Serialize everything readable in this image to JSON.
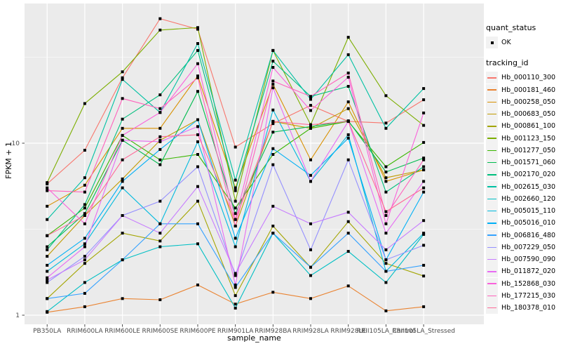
{
  "figure": {
    "background": "#FFFFFF",
    "panel_background": "#EBEBEB",
    "grid_color": "#FFFFFF",
    "tick_color": "#333333",
    "axis_text_color": "#4D4D4D"
  },
  "chart_data": {
    "type": "line",
    "x_axis": {
      "label": "sample_name",
      "categories": [
        "PB350LA",
        "RRIM600LA",
        "RRIM600LE",
        "RRIM600SE",
        "RRIM600PE",
        "RRIM901LA",
        "RRIM928BA",
        "RRIM928LA",
        "RRIM928LE",
        "RRII105LA_Control",
        "RRII105LA_Stressed"
      ]
    },
    "y_axis": {
      "label": "FPKM + 1",
      "scale": "log10",
      "ticks": [
        {
          "label": "1",
          "value": 1
        },
        {
          "label": "10",
          "value": 10
        }
      ],
      "minor_ticks": [
        3.162,
        31.62
      ],
      "range": [
        0.95,
        65
      ]
    },
    "point": {
      "shape": "square",
      "color": "#000000",
      "size": 4
    },
    "series": [
      {
        "name": "Hb_000110_300",
        "color": "#F8766D",
        "values": [
          5.8,
          9.1,
          24,
          53,
          46,
          9.5,
          13.0,
          16.6,
          13.4,
          13.1,
          17.9
        ]
      },
      {
        "name": "Hb_000181_460",
        "color": "#EA8331",
        "values": [
          1.04,
          1.12,
          1.25,
          1.23,
          1.5,
          1.16,
          1.36,
          1.25,
          1.48,
          1.06,
          1.12
        ]
      },
      {
        "name": "Hb_000258_050",
        "color": "#D89000",
        "values": [
          4.3,
          5.7,
          12.2,
          12.2,
          24.6,
          5.5,
          22,
          8.0,
          17.4,
          6.0,
          7.0
        ]
      },
      {
        "name": "Hb_000683_050",
        "color": "#C09B00",
        "values": [
          2.2,
          3.8,
          6.2,
          10.4,
          13.7,
          3.3,
          13.4,
          12.2,
          15.9,
          6.3,
          7.0
        ]
      },
      {
        "name": "Hb_000861_100",
        "color": "#A3A500",
        "values": [
          1.25,
          2.0,
          3.0,
          2.7,
          4.6,
          1.3,
          3.3,
          1.9,
          3.5,
          2.0,
          1.69
        ]
      },
      {
        "name": "Hb_001123_150",
        "color": "#7CAE00",
        "values": [
          5.9,
          17.0,
          26,
          45.5,
          47,
          4.6,
          34.6,
          12.8,
          41.3,
          18.9,
          12.7
        ]
      },
      {
        "name": "Hb_001277_050",
        "color": "#39B600",
        "values": [
          2.9,
          4.2,
          11.1,
          8.0,
          8.6,
          4.2,
          8.6,
          12.2,
          13.4,
          7.3,
          10.1
        ]
      },
      {
        "name": "Hb_001571_060",
        "color": "#00BB4E",
        "values": [
          2.5,
          3.9,
          10.4,
          7.5,
          20,
          3.9,
          11.6,
          12.5,
          13.5,
          6.8,
          8.2
        ]
      },
      {
        "name": "Hb_002170_020",
        "color": "#00BF7D",
        "values": [
          2.4,
          4.4,
          13.8,
          19.1,
          34.6,
          5.3,
          30,
          18.7,
          21.4,
          5.2,
          7.3
        ]
      },
      {
        "name": "Hb_002615_030",
        "color": "#00C1A3",
        "values": [
          3.6,
          6.3,
          23.5,
          15.1,
          38,
          6.1,
          34.6,
          18.0,
          32.7,
          12.2,
          20.8
        ]
      },
      {
        "name": "Hb_002660_120",
        "color": "#00BFC4",
        "values": [
          1.05,
          1.55,
          2.1,
          2.5,
          2.6,
          1.1,
          3.0,
          1.7,
          2.35,
          1.55,
          2.95
        ]
      },
      {
        "name": "Hb_005015_110",
        "color": "#00BADE",
        "values": [
          1.8,
          2.6,
          5.5,
          3.4,
          10.2,
          2.5,
          15.6,
          6.0,
          11.2,
          1.8,
          3.0
        ]
      },
      {
        "name": "Hb_005016_010",
        "color": "#00B0F6",
        "values": [
          1.95,
          2.8,
          6.0,
          9.2,
          13.7,
          2.8,
          9.3,
          6.5,
          10.7,
          2.1,
          5.2
        ]
      },
      {
        "name": "Hb_006816_480",
        "color": "#35A2FF",
        "values": [
          1.25,
          1.34,
          2.1,
          3.4,
          3.4,
          1.45,
          3.0,
          1.9,
          3.0,
          1.8,
          1.95
        ]
      },
      {
        "name": "Hb_007229_050",
        "color": "#9590FF",
        "values": [
          1.55,
          2.2,
          3.8,
          4.6,
          7.3,
          1.7,
          7.5,
          2.4,
          8.0,
          2.1,
          2.55
        ]
      },
      {
        "name": "Hb_007590_090",
        "color": "#C77CFF",
        "values": [
          1.6,
          2.1,
          3.8,
          3.0,
          5.6,
          1.75,
          4.3,
          3.4,
          3.97,
          2.4,
          3.55
        ]
      },
      {
        "name": "Hb_011872_020",
        "color": "#E76BF3",
        "values": [
          1.65,
          2.5,
          10.4,
          10.2,
          12.5,
          1.5,
          21,
          6.0,
          13.4,
          3.0,
          6.0
        ]
      },
      {
        "name": "Hb_152868_030",
        "color": "#FA62DB",
        "values": [
          5.5,
          3.4,
          11.1,
          15.1,
          29,
          3.6,
          27.6,
          15.5,
          24.2,
          3.4,
          15.0
        ]
      },
      {
        "name": "Hb_177215_030",
        "color": "#FF62BC",
        "values": [
          5.3,
          5.2,
          18.2,
          15.9,
          24,
          3.3,
          23,
          18.7,
          25.6,
          3.8,
          8.0
        ]
      },
      {
        "name": "Hb_180378_010",
        "color": "#FF6A98",
        "values": [
          2.9,
          3.8,
          8.0,
          10.9,
          11.2,
          3.6,
          13.4,
          12.8,
          13.4,
          4.0,
          5.5
        ]
      }
    ]
  },
  "legend": {
    "quant_status": {
      "title": "quant_status",
      "items": [
        {
          "label": "OK",
          "marker_color": "#000000"
        }
      ]
    },
    "tracking_id": {
      "title": "tracking_id"
    }
  }
}
